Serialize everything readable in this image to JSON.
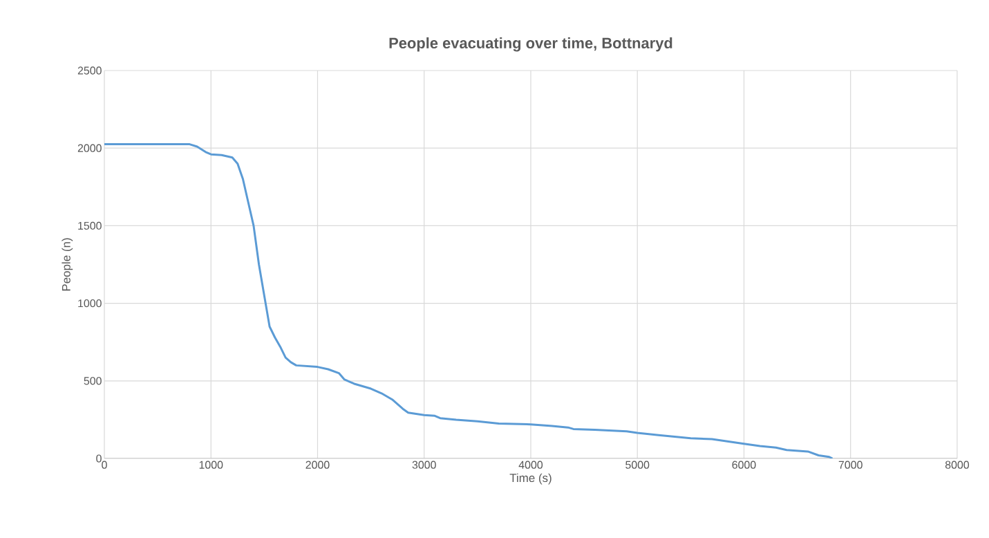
{
  "chart_data": {
    "type": "line",
    "title": "People evacuating over time, Bottnaryd",
    "xlabel": "Time (s)",
    "ylabel": "People (n)",
    "xlim": [
      0,
      8000
    ],
    "ylim": [
      0,
      2500
    ],
    "xticks": [
      0,
      1000,
      2000,
      3000,
      4000,
      5000,
      6000,
      7000,
      8000
    ],
    "yticks": [
      0,
      500,
      1000,
      1500,
      2000,
      2500
    ],
    "grid": true,
    "series": [
      {
        "color": "#5b9bd5",
        "x": [
          0,
          800,
          870,
          950,
          1000,
          1100,
          1200,
          1250,
          1300,
          1350,
          1400,
          1450,
          1500,
          1550,
          1600,
          1650,
          1700,
          1750,
          1800,
          2000,
          2100,
          2200,
          2250,
          2350,
          2500,
          2600,
          2700,
          2800,
          2850,
          3000,
          3100,
          3150,
          3300,
          3500,
          3700,
          4000,
          4200,
          4350,
          4400,
          4600,
          4900,
          5000,
          5200,
          5500,
          5700,
          5900,
          6000,
          6150,
          6300,
          6400,
          6600,
          6700,
          6800,
          6830
        ],
        "values": [
          2025,
          2025,
          2010,
          1975,
          1960,
          1955,
          1940,
          1900,
          1800,
          1650,
          1500,
          1250,
          1050,
          850,
          780,
          720,
          650,
          620,
          600,
          590,
          575,
          550,
          510,
          480,
          450,
          420,
          380,
          320,
          295,
          280,
          275,
          260,
          250,
          240,
          225,
          220,
          210,
          200,
          190,
          185,
          175,
          165,
          150,
          130,
          125,
          105,
          95,
          80,
          70,
          55,
          45,
          20,
          10,
          0
        ]
      }
    ]
  }
}
